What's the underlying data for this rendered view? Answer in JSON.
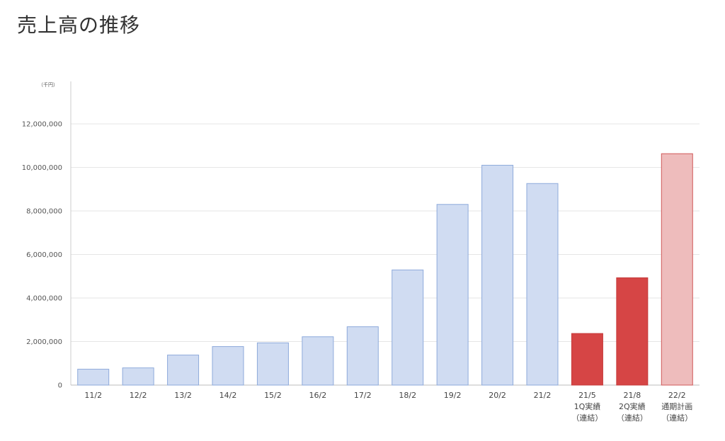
{
  "page": {
    "title": "売上高の推移"
  },
  "chart_data": {
    "type": "bar",
    "title": "売上高の推移",
    "unit": "（千円）",
    "ylim": [
      0,
      14000000
    ],
    "yticks": [
      {
        "value": 0,
        "label": "0"
      },
      {
        "value": 2000000,
        "label": "2,000,000"
      },
      {
        "value": 4000000,
        "label": "4,000,000"
      },
      {
        "value": 6000000,
        "label": "6,000,000"
      },
      {
        "value": 8000000,
        "label": "8,000,000"
      },
      {
        "value": 10000000,
        "label": "10,000,000"
      },
      {
        "value": 12000000,
        "label": "12,000,000"
      }
    ],
    "grid": true,
    "legend": "none",
    "categories": [
      [
        "11/2"
      ],
      [
        "12/2"
      ],
      [
        "13/2"
      ],
      [
        "14/2"
      ],
      [
        "15/2"
      ],
      [
        "16/2"
      ],
      [
        "17/2"
      ],
      [
        "18/2"
      ],
      [
        "19/2"
      ],
      [
        "20/2"
      ],
      [
        "21/2"
      ],
      [
        "21/5",
        "1Q実績",
        "（連結）"
      ],
      [
        "21/8",
        "2Q実績",
        "（連結）"
      ],
      [
        "22/2",
        "通期計画",
        "（連結）"
      ]
    ],
    "values": [
      730000,
      790000,
      1380000,
      1770000,
      1940000,
      2220000,
      2680000,
      5290000,
      8300000,
      10100000,
      9260000,
      2370000,
      4930000,
      10630000
    ],
    "bar_styles": [
      "light",
      "light",
      "light",
      "light",
      "light",
      "light",
      "light",
      "light",
      "light",
      "light",
      "light",
      "actual",
      "actual",
      "plan"
    ],
    "colors": {
      "light": {
        "fill": "#d0dcf2",
        "stroke": "#8eaadb"
      },
      "actual": {
        "fill": "#d64545",
        "stroke": "#c53a3a"
      },
      "plan": {
        "fill": "#eebcbc",
        "stroke": "#d05a5a"
      },
      "grid": "#e6e6e6",
      "axis": "#cccccc"
    }
  }
}
